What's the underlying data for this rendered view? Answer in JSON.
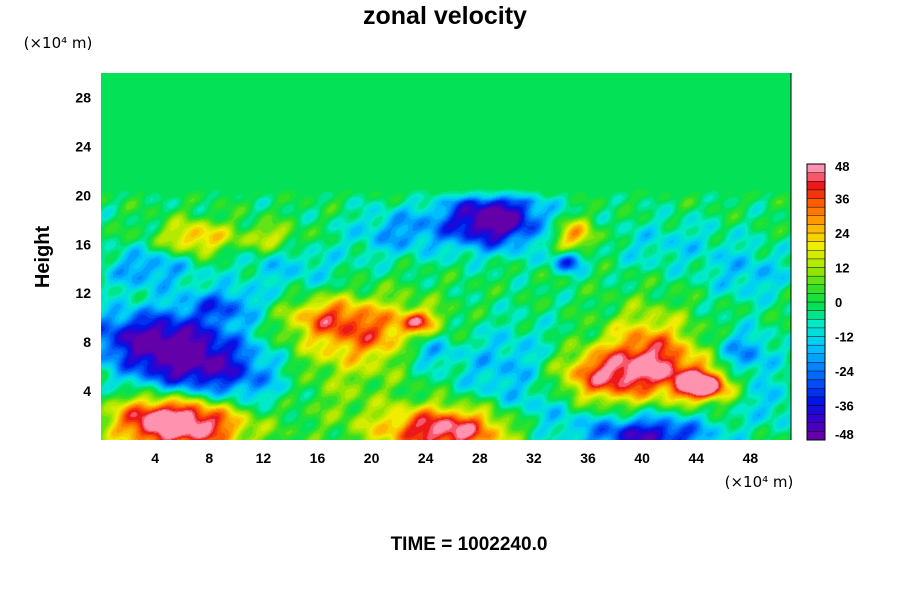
{
  "chart_data": {
    "type": "heatmap",
    "title": "zonal velocity",
    "ylabel": "Height",
    "xlabel": "",
    "y_unit": "(×10⁴ m)",
    "x_unit": "(×10⁴ m)",
    "footer": "TIME = 1002240.0",
    "xlim": [
      0,
      51
    ],
    "ylim": [
      0,
      30
    ],
    "x_ticks": [
      "4",
      "8",
      "12",
      "16",
      "20",
      "24",
      "28",
      "32",
      "36",
      "40",
      "44",
      "48"
    ],
    "y_ticks": [
      "4",
      "8",
      "12",
      "16",
      "20",
      "24",
      "28"
    ],
    "colorbar": {
      "min": -48,
      "max": 48,
      "levels": 32,
      "ticks": [
        "48",
        "36",
        "24",
        "12",
        "0",
        "-12",
        "-24",
        "-36",
        "-48"
      ]
    },
    "background_value": -1,
    "features": [
      {
        "x": 6.5,
        "y": 1.4,
        "sx": 3.2,
        "sy": 1.6,
        "v": 55
      },
      {
        "x": 3.5,
        "y": 1.8,
        "sx": 2.2,
        "sy": 1.5,
        "v": 20
      },
      {
        "x": 25.5,
        "y": 0.8,
        "sx": 3.5,
        "sy": 1.4,
        "v": 50
      },
      {
        "x": 19.5,
        "y": 8.8,
        "sx": 3.6,
        "sy": 1.9,
        "v": 34
      },
      {
        "x": 16.5,
        "y": 10.2,
        "sx": 2.0,
        "sy": 1.0,
        "v": 18
      },
      {
        "x": 23.5,
        "y": 9.7,
        "sx": 0.9,
        "sy": 0.6,
        "v": 28
      },
      {
        "x": 37.0,
        "y": 5.2,
        "sx": 2.6,
        "sy": 1.6,
        "v": 40
      },
      {
        "x": 40.5,
        "y": 7.5,
        "sx": 2.2,
        "sy": 2.2,
        "v": 30
      },
      {
        "x": 44.5,
        "y": 4.4,
        "sx": 1.3,
        "sy": 0.8,
        "v": 55
      },
      {
        "x": 43.0,
        "y": 5.5,
        "sx": 2.5,
        "sy": 1.5,
        "v": 22
      },
      {
        "x": 6.5,
        "y": 6.5,
        "sx": 3.2,
        "sy": 2.3,
        "v": -45
      },
      {
        "x": 2.5,
        "y": 8.5,
        "sx": 3.0,
        "sy": 1.6,
        "v": -28
      },
      {
        "x": 11.0,
        "y": 4.5,
        "sx": 2.5,
        "sy": 2.0,
        "v": -14
      },
      {
        "x": 29.0,
        "y": 18.0,
        "sx": 2.6,
        "sy": 1.6,
        "v": -52
      },
      {
        "x": 40.5,
        "y": 0.4,
        "sx": 3.2,
        "sy": 1.1,
        "v": -40
      },
      {
        "x": 47.5,
        "y": 7.0,
        "sx": 1.6,
        "sy": 1.4,
        "v": -22
      },
      {
        "x": 24.0,
        "y": 7.3,
        "sx": 1.4,
        "sy": 1.0,
        "v": -22
      },
      {
        "x": 34.5,
        "y": 14.6,
        "sx": 0.8,
        "sy": 0.6,
        "v": -32
      },
      {
        "x": 30.0,
        "y": 6.0,
        "sx": 3.0,
        "sy": 2.4,
        "v": -16
      },
      {
        "x": 14.0,
        "y": 14.0,
        "sx": 3.0,
        "sy": 1.5,
        "v": -12
      },
      {
        "x": 7.0,
        "y": 16.5,
        "sx": 1.8,
        "sy": 1.0,
        "v": 28
      },
      {
        "x": 12.5,
        "y": 16.5,
        "sx": 1.6,
        "sy": 0.8,
        "v": 18
      },
      {
        "x": 35.0,
        "y": 16.7,
        "sx": 1.2,
        "sy": 1.0,
        "v": 30
      },
      {
        "x": 22.0,
        "y": 17.0,
        "sx": 2.5,
        "sy": 1.4,
        "v": -18
      },
      {
        "x": 42.0,
        "y": 16.0,
        "sx": 3.5,
        "sy": 1.5,
        "v": -10
      },
      {
        "x": 3.5,
        "y": 14.0,
        "sx": 2.4,
        "sy": 1.2,
        "v": -20
      },
      {
        "x": 9.0,
        "y": 11.0,
        "sx": 2.0,
        "sy": 1.0,
        "v": -22
      },
      {
        "x": 48.0,
        "y": 13.5,
        "sx": 2.2,
        "sy": 1.5,
        "v": -14
      },
      {
        "x": 33.0,
        "y": 2.0,
        "sx": 2.5,
        "sy": 1.6,
        "v": -12
      },
      {
        "x": 17.5,
        "y": 4.0,
        "sx": 3.0,
        "sy": 2.2,
        "v": 8
      },
      {
        "x": 49.5,
        "y": 3.0,
        "sx": 1.5,
        "sy": 1.5,
        "v": -12
      }
    ]
  }
}
